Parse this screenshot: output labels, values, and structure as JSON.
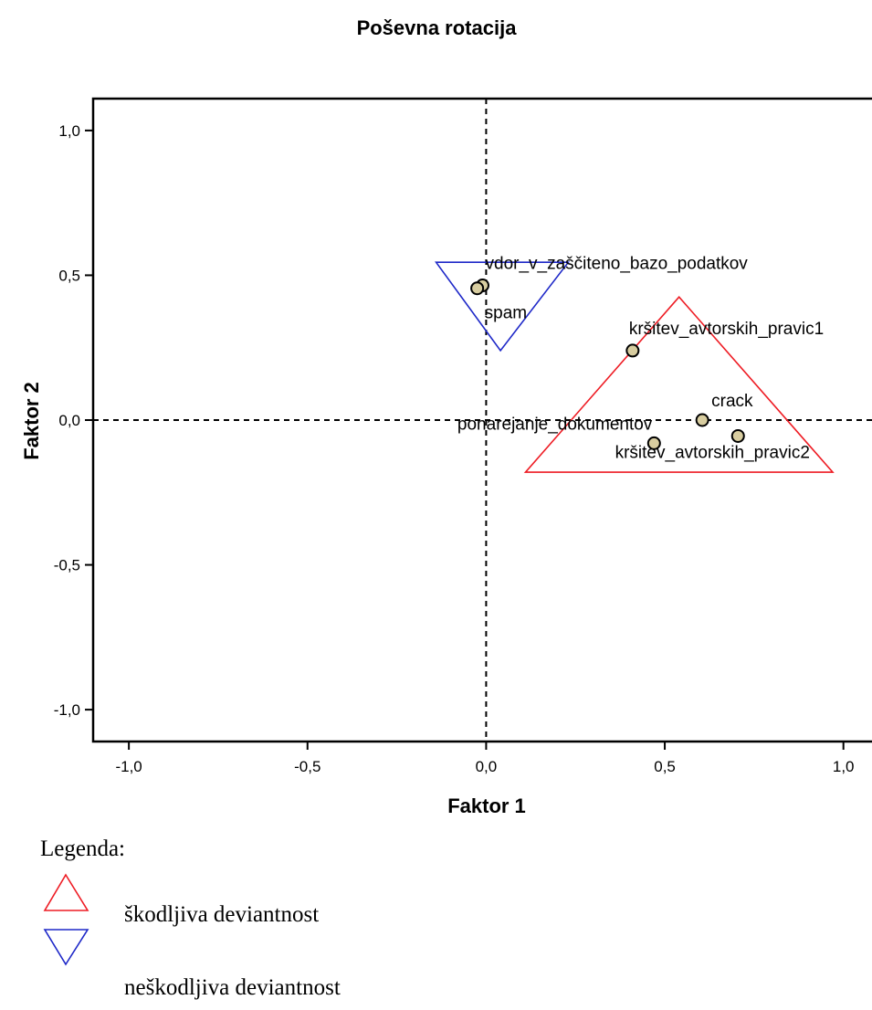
{
  "chart_data": {
    "type": "scatter",
    "title": "Poševna rotacija",
    "xlabel": "Faktor 1",
    "ylabel": "Faktor 2",
    "xlim": [
      -1.1,
      1.08
    ],
    "ylim": [
      -1.11,
      1.11
    ],
    "xticks": [
      -1.0,
      -0.5,
      0.0,
      0.5,
      1.0
    ],
    "yticks": [
      -1.0,
      -0.5,
      0.0,
      0.5,
      1.0
    ],
    "xtick_labels": [
      "-1,0",
      "-0,5",
      "0,0",
      "0,5",
      "1,0"
    ],
    "ytick_labels": [
      "-1,0",
      "-0,5",
      "0,0",
      "0,5",
      "1,0"
    ],
    "reference_lines": {
      "x": 0.0,
      "y": 0.0,
      "style": "dashed"
    },
    "points": [
      {
        "label": "vdor_v_zaščiteno_bazo_podatkov",
        "x": -0.01,
        "y": 0.465
      },
      {
        "label": "spam",
        "x": -0.025,
        "y": 0.455
      },
      {
        "label": "kršitev_avtorskih_pravic1",
        "x": 0.41,
        "y": 0.24
      },
      {
        "label": "crack",
        "x": 0.605,
        "y": 0.0
      },
      {
        "label": "ponarejanje_dokumentov",
        "x": 0.47,
        "y": -0.08
      },
      {
        "label": "kršitev_avtorskih_pravic2",
        "x": 0.705,
        "y": -0.055
      }
    ],
    "marker_color": "#d8cda0",
    "groups": [
      {
        "name": "škodljiva deviantnost",
        "shape": "triangle-up",
        "color": "#ee1c24",
        "vertices": [
          [
            0.54,
            0.425
          ],
          [
            0.11,
            -0.18
          ],
          [
            0.97,
            -0.18
          ]
        ]
      },
      {
        "name": "neškodljiva deviantnost",
        "shape": "triangle-down",
        "color": "#1e28c8",
        "vertices": [
          [
            -0.14,
            0.545
          ],
          [
            0.23,
            0.545
          ],
          [
            0.04,
            0.24
          ]
        ]
      }
    ],
    "legend": {
      "title": "Legenda:",
      "placement": "bottom-left",
      "entries": [
        {
          "label": "škodljiva deviantnost",
          "shape": "triangle-up",
          "color": "#ee1c24"
        },
        {
          "label": "neškodljiva deviantnost",
          "shape": "triangle-down",
          "color": "#1e28c8"
        }
      ]
    },
    "grid": false
  }
}
